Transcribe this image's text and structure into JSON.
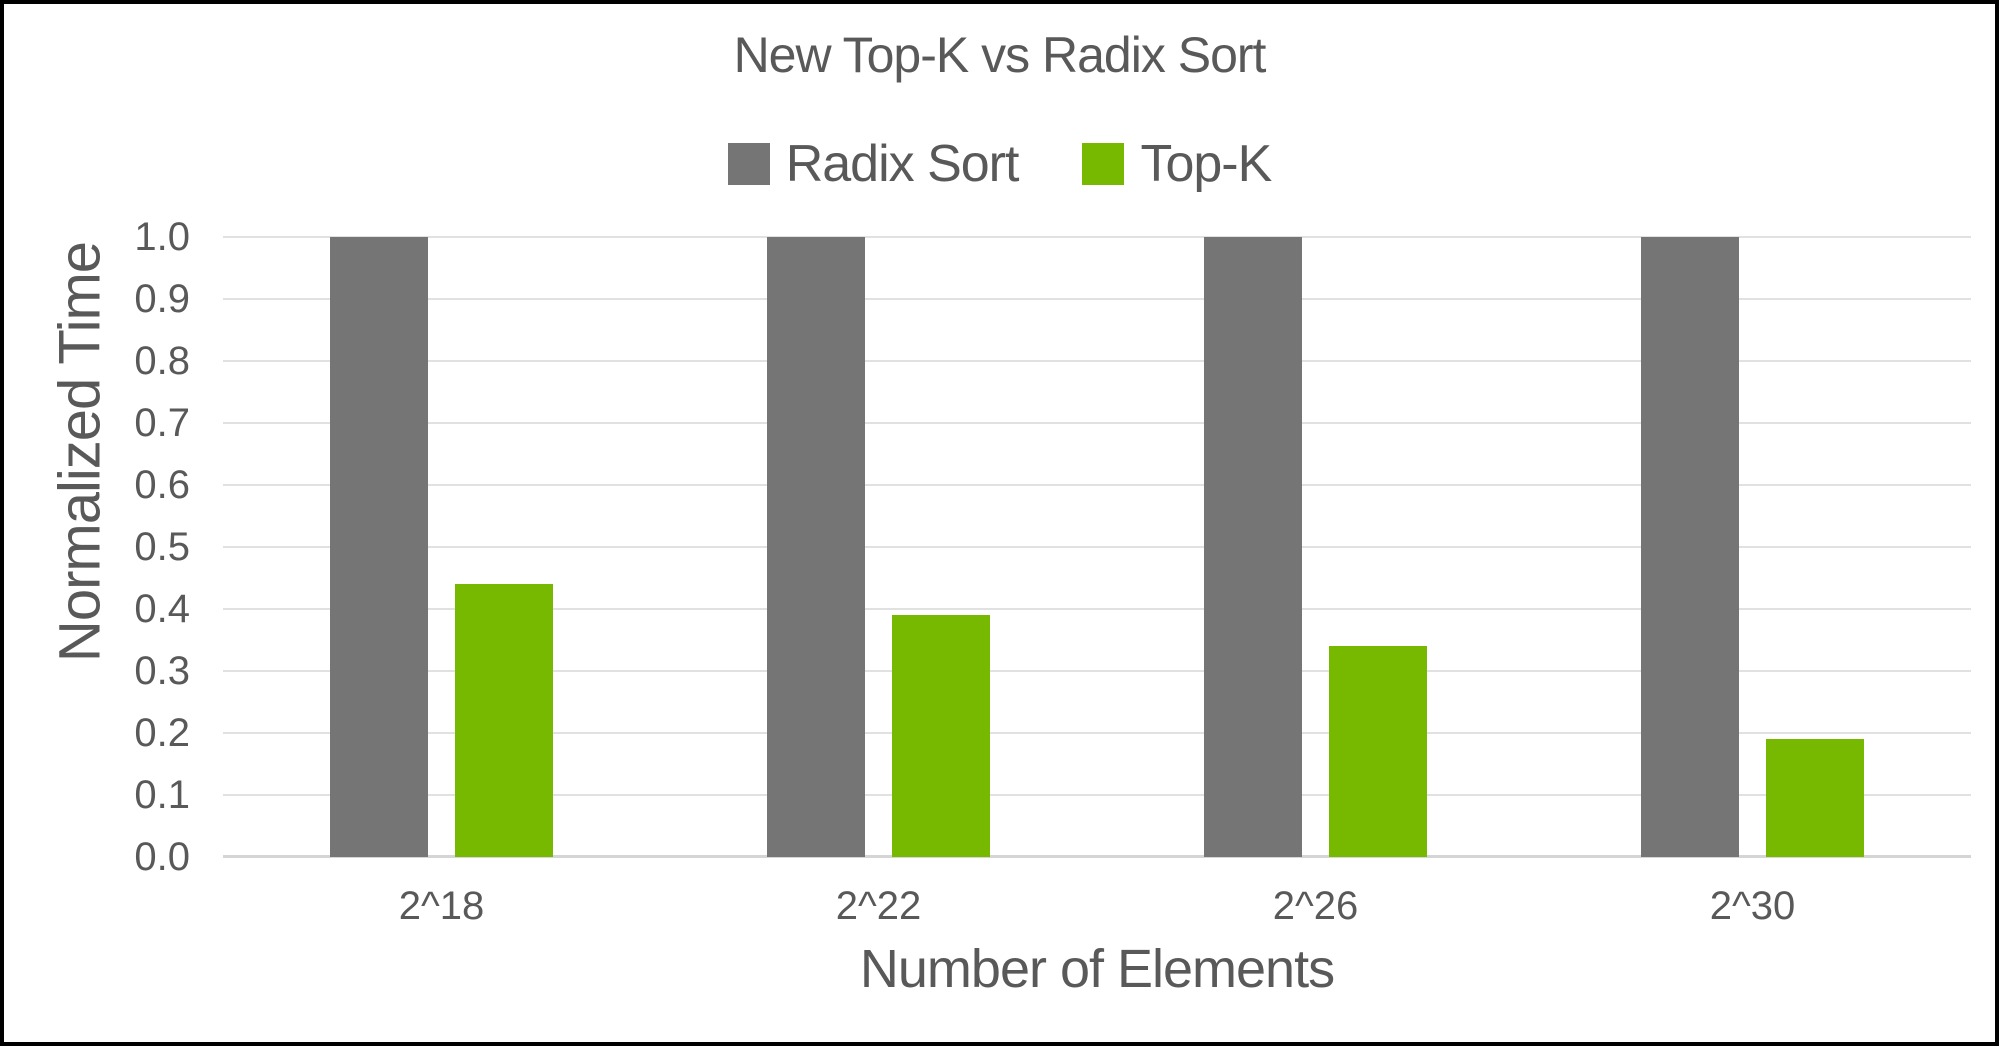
{
  "chart_data": {
    "type": "bar",
    "title": "New Top-K vs Radix Sort",
    "categories": [
      "2^18",
      "2^22",
      "2^26",
      "2^30"
    ],
    "series": [
      {
        "name": "Radix Sort",
        "color": "#757575",
        "values": [
          1.0,
          1.0,
          1.0,
          1.0
        ]
      },
      {
        "name": "Top-K",
        "color": "#76B900",
        "values": [
          0.44,
          0.39,
          0.34,
          0.19
        ]
      }
    ],
    "xlabel": "Number of Elements",
    "ylabel": "Normalized Time",
    "ylim": [
      0.0,
      1.0
    ],
    "ytick_step": 0.1,
    "ytick_labels": [
      "1.0",
      "0.9",
      "0.8",
      "0.7",
      "0.6",
      "0.5",
      "0.4",
      "0.3",
      "0.2",
      "0.1",
      "0.0"
    ],
    "grid": "horizontal",
    "legend_position": "top-center",
    "text_color": "#595959",
    "gridline_color": "#E1E1E1",
    "axis_line_color": "#D5D5D5",
    "background_color": "#FFFFFF",
    "border_color": "#000000"
  }
}
